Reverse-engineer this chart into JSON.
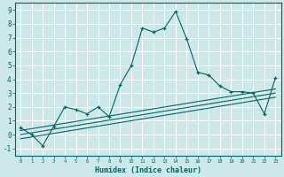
{
  "xlabel": "Humidex (Indice chaleur)",
  "ylabel": "",
  "bg_color": "#cce8e8",
  "grid_color": "#ffffff",
  "line_color": "#006666",
  "xlim": [
    -0.5,
    23.5
  ],
  "ylim": [
    -1.5,
    9.5
  ],
  "xticks": [
    0,
    1,
    2,
    3,
    4,
    5,
    6,
    7,
    8,
    9,
    10,
    11,
    12,
    13,
    14,
    15,
    16,
    17,
    18,
    19,
    20,
    21,
    22,
    23
  ],
  "yticks": [
    -1,
    0,
    1,
    2,
    3,
    4,
    5,
    6,
    7,
    8,
    9
  ],
  "main_series_x": [
    0,
    1,
    2,
    3,
    4,
    5,
    6,
    7,
    8,
    9,
    10,
    11,
    12,
    13,
    14,
    15,
    16,
    17,
    18,
    19,
    20,
    21,
    22,
    23
  ],
  "main_series_y": [
    0.5,
    0.0,
    -0.8,
    0.6,
    2.0,
    1.8,
    1.5,
    2.0,
    1.3,
    3.6,
    5.0,
    7.7,
    7.4,
    7.7,
    8.9,
    6.9,
    4.5,
    4.3,
    3.5,
    3.1,
    3.1,
    3.0,
    1.5,
    4.1
  ],
  "line1_x": [
    0,
    23
  ],
  "line1_y": [
    0.3,
    3.3
  ],
  "line2_x": [
    0,
    23
  ],
  "line2_y": [
    0.0,
    3.0
  ],
  "line3_x": [
    0,
    23
  ],
  "line3_y": [
    -0.3,
    2.7
  ]
}
